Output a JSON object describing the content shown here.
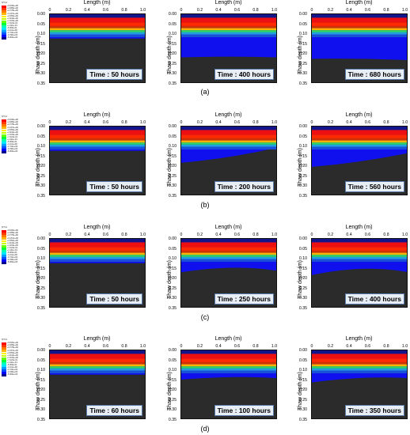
{
  "legend": {
    "title": "NT11",
    "entries": [
      {
        "label": "+5.000e+00",
        "color": "#ff0000"
      },
      {
        "label": "+4.389e+00",
        "color": "#ff3a00"
      },
      {
        "label": "+3.778e+00",
        "color": "#ff7a00"
      },
      {
        "label": "+3.167e+00",
        "color": "#ffb400"
      },
      {
        "label": "+2.556e+00",
        "color": "#fff200"
      },
      {
        "label": "+1.944e+00",
        "color": "#c8ff00"
      },
      {
        "label": "+1.333e+00",
        "color": "#6aff00"
      },
      {
        "label": "+7.222e-01",
        "color": "#00ff3a"
      },
      {
        "label": "+1.111e-01",
        "color": "#00ffb0"
      },
      {
        "label": "-5.000e-01",
        "color": "#00e6ff"
      },
      {
        "label": "-1.111e+00",
        "color": "#009cff"
      },
      {
        "label": "-1.722e+00",
        "color": "#0050ff"
      },
      {
        "label": "-2.333e+00",
        "color": "#0000ff"
      },
      {
        "label": "-5.000e+00",
        "color": "#00008a"
      }
    ]
  },
  "axes": {
    "xlabel": "Length (m)",
    "ylabel": "Thaw depth (m)",
    "xticks": [
      "0",
      "0.2",
      "0.4",
      "0.6",
      "0.8",
      "1.0"
    ],
    "yticks": [
      "0.00",
      "0.05",
      "0.10",
      "0.15",
      "0.20",
      "0.25",
      "0.30",
      "0.35"
    ]
  },
  "rows": [
    {
      "caption": "(a)",
      "times": [
        "Time : 50 hours",
        "Time : 400 hours",
        "Time : 680 hours"
      ]
    },
    {
      "caption": "(b)",
      "times": [
        "Time : 50 hours",
        "Time : 200 hours",
        "Time : 560 hours"
      ]
    },
    {
      "caption": "(c)",
      "times": [
        "Time : 50 hours",
        "Time : 250 hours",
        "Time : 400 hours"
      ]
    },
    {
      "caption": "(d)",
      "times": [
        "Time : 60 hours",
        "Time : 100 hours",
        "Time : 350 hours"
      ]
    }
  ]
}
